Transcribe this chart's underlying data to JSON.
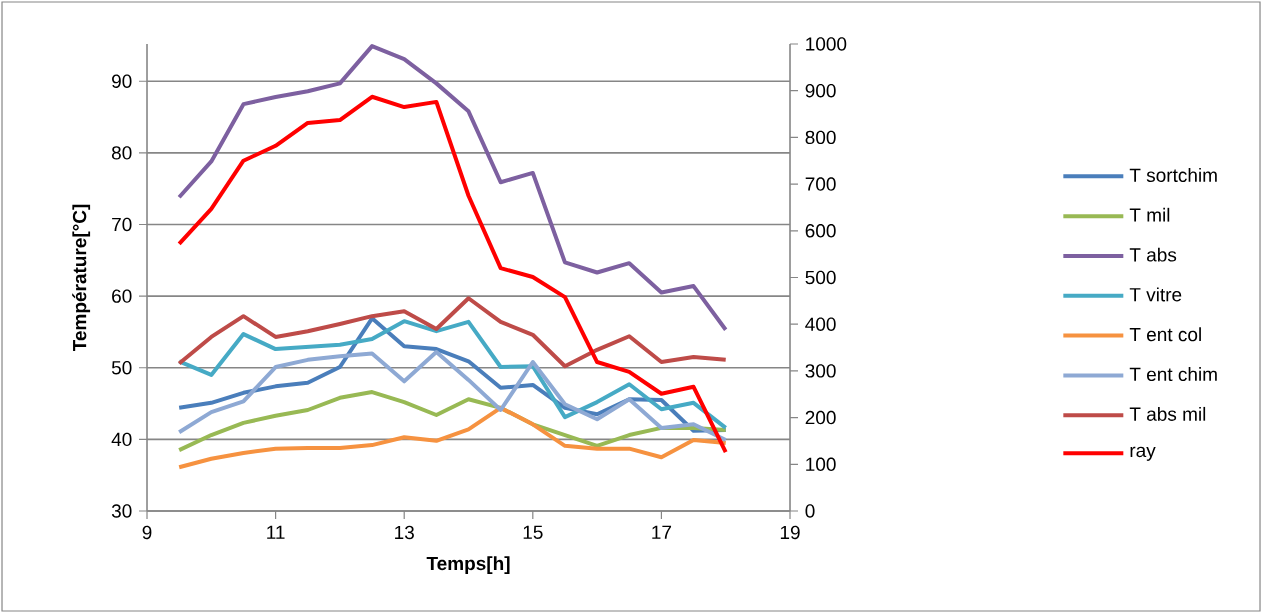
{
  "chart_data": {
    "type": "line",
    "xlabel": "Temps[h]",
    "ylabel": "Température[°C]",
    "x": [
      9.5,
      10,
      10.5,
      11,
      11.5,
      12,
      12.5,
      13,
      13.5,
      14,
      14.5,
      15,
      15.5,
      16,
      16.5,
      17,
      17.5,
      18
    ],
    "xlim": [
      9,
      19
    ],
    "xticks": [
      9,
      11,
      13,
      15,
      17,
      19
    ],
    "ylim": [
      30,
      95.2
    ],
    "yticks": [
      30,
      40,
      50,
      60,
      70,
      80,
      90
    ],
    "y2lim": [
      0,
      1000
    ],
    "y2ticks": [
      0,
      100,
      200,
      300,
      400,
      500,
      600,
      700,
      800,
      900,
      1000
    ],
    "grid": "y",
    "legend": "right",
    "line_style": "solid",
    "series": [
      {
        "name": "T sortchim",
        "color": "#4a7ebb",
        "values": [
          44.4,
          45.1,
          46.5,
          47.4,
          47.9,
          50.1,
          56.9,
          53.0,
          52.6,
          50.9,
          47.2,
          47.6,
          44.4,
          43.5,
          45.6,
          45.5,
          41.2,
          41.3
        ]
      },
      {
        "name": "T mil",
        "color": "#98b954",
        "values": [
          38.5,
          40.6,
          42.3,
          43.3,
          44.1,
          45.8,
          46.6,
          45.2,
          43.4,
          45.6,
          44.4,
          42.1,
          40.6,
          39.1,
          40.6,
          41.6,
          41.6,
          41.3
        ]
      },
      {
        "name": "T abs",
        "color": "#7d60a0",
        "values": [
          73.8,
          78.8,
          86.8,
          87.8,
          88.6,
          89.7,
          94.9,
          93.1,
          89.7,
          85.8,
          75.9,
          77.2,
          64.7,
          63.3,
          64.6,
          60.5,
          61.4,
          55.3
        ]
      },
      {
        "name": "T vitre",
        "color": "#46aac5",
        "values": [
          50.9,
          49.0,
          54.7,
          52.6,
          52.9,
          53.2,
          54.0,
          56.5,
          55.1,
          56.4,
          50.1,
          50.2,
          43.1,
          45.2,
          47.7,
          44.2,
          45.1,
          41.6
        ]
      },
      {
        "name": "T ent col",
        "color": "#f69240",
        "values": [
          36.1,
          37.3,
          38.1,
          38.7,
          38.8,
          38.8,
          39.2,
          40.3,
          39.8,
          41.4,
          44.4,
          42.1,
          39.1,
          38.7,
          38.7,
          37.5,
          39.9,
          39.5
        ]
      },
      {
        "name": "T ent chim",
        "color": "#8ea9d4",
        "values": [
          41.0,
          43.8,
          45.3,
          50.1,
          51.1,
          51.6,
          52.0,
          48.1,
          52.2,
          48.3,
          44.1,
          50.8,
          44.9,
          42.8,
          45.6,
          41.6,
          42.1,
          39.9
        ]
      },
      {
        "name": "T abs mil",
        "color": "#be4b48",
        "values": [
          50.6,
          54.3,
          57.2,
          54.3,
          55.1,
          56.1,
          57.2,
          57.9,
          55.4,
          59.7,
          56.4,
          54.6,
          50.2,
          52.5,
          54.4,
          50.8,
          51.5,
          51.1
        ]
      },
      {
        "name": "ray",
        "color": "#ff0000",
        "axis": "y2",
        "values": [
          572,
          647,
          750,
          782,
          831,
          837,
          887,
          865,
          876,
          675,
          520,
          501,
          458,
          319,
          298,
          251,
          266,
          126
        ]
      }
    ]
  }
}
